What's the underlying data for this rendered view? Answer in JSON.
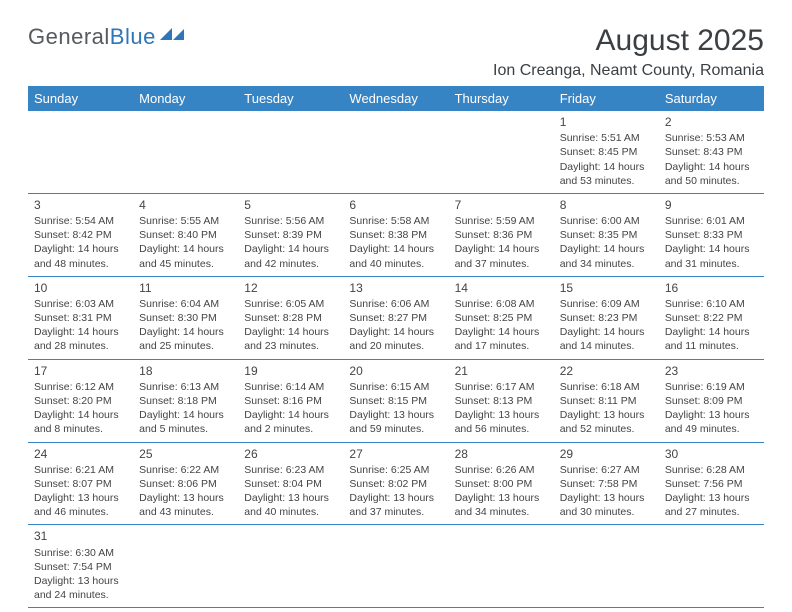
{
  "logo": {
    "word1": "General",
    "word2": "Blue"
  },
  "header": {
    "month_title": "August 2025",
    "location": "Ion Creanga, Neamt County, Romania"
  },
  "colors": {
    "header_bg": "#3784c5",
    "header_text": "#ffffff",
    "accent_border": "#3784c5",
    "text": "#444444",
    "logo_gray": "#555a5e",
    "logo_blue": "#2f76b8"
  },
  "day_labels": [
    "Sunday",
    "Monday",
    "Tuesday",
    "Wednesday",
    "Thursday",
    "Friday",
    "Saturday"
  ],
  "weeks": [
    [
      {
        "empty": true
      },
      {
        "empty": true
      },
      {
        "empty": true
      },
      {
        "empty": true
      },
      {
        "empty": true
      },
      {
        "day": "1",
        "sunrise": "Sunrise: 5:51 AM",
        "sunset": "Sunset: 8:45 PM",
        "daylight": "Daylight: 14 hours and 53 minutes."
      },
      {
        "day": "2",
        "sunrise": "Sunrise: 5:53 AM",
        "sunset": "Sunset: 8:43 PM",
        "daylight": "Daylight: 14 hours and 50 minutes."
      }
    ],
    [
      {
        "day": "3",
        "sunrise": "Sunrise: 5:54 AM",
        "sunset": "Sunset: 8:42 PM",
        "daylight": "Daylight: 14 hours and 48 minutes."
      },
      {
        "day": "4",
        "sunrise": "Sunrise: 5:55 AM",
        "sunset": "Sunset: 8:40 PM",
        "daylight": "Daylight: 14 hours and 45 minutes."
      },
      {
        "day": "5",
        "sunrise": "Sunrise: 5:56 AM",
        "sunset": "Sunset: 8:39 PM",
        "daylight": "Daylight: 14 hours and 42 minutes."
      },
      {
        "day": "6",
        "sunrise": "Sunrise: 5:58 AM",
        "sunset": "Sunset: 8:38 PM",
        "daylight": "Daylight: 14 hours and 40 minutes."
      },
      {
        "day": "7",
        "sunrise": "Sunrise: 5:59 AM",
        "sunset": "Sunset: 8:36 PM",
        "daylight": "Daylight: 14 hours and 37 minutes."
      },
      {
        "day": "8",
        "sunrise": "Sunrise: 6:00 AM",
        "sunset": "Sunset: 8:35 PM",
        "daylight": "Daylight: 14 hours and 34 minutes."
      },
      {
        "day": "9",
        "sunrise": "Sunrise: 6:01 AM",
        "sunset": "Sunset: 8:33 PM",
        "daylight": "Daylight: 14 hours and 31 minutes."
      }
    ],
    [
      {
        "day": "10",
        "sunrise": "Sunrise: 6:03 AM",
        "sunset": "Sunset: 8:31 PM",
        "daylight": "Daylight: 14 hours and 28 minutes."
      },
      {
        "day": "11",
        "sunrise": "Sunrise: 6:04 AM",
        "sunset": "Sunset: 8:30 PM",
        "daylight": "Daylight: 14 hours and 25 minutes."
      },
      {
        "day": "12",
        "sunrise": "Sunrise: 6:05 AM",
        "sunset": "Sunset: 8:28 PM",
        "daylight": "Daylight: 14 hours and 23 minutes."
      },
      {
        "day": "13",
        "sunrise": "Sunrise: 6:06 AM",
        "sunset": "Sunset: 8:27 PM",
        "daylight": "Daylight: 14 hours and 20 minutes."
      },
      {
        "day": "14",
        "sunrise": "Sunrise: 6:08 AM",
        "sunset": "Sunset: 8:25 PM",
        "daylight": "Daylight: 14 hours and 17 minutes."
      },
      {
        "day": "15",
        "sunrise": "Sunrise: 6:09 AM",
        "sunset": "Sunset: 8:23 PM",
        "daylight": "Daylight: 14 hours and 14 minutes."
      },
      {
        "day": "16",
        "sunrise": "Sunrise: 6:10 AM",
        "sunset": "Sunset: 8:22 PM",
        "daylight": "Daylight: 14 hours and 11 minutes."
      }
    ],
    [
      {
        "day": "17",
        "sunrise": "Sunrise: 6:12 AM",
        "sunset": "Sunset: 8:20 PM",
        "daylight": "Daylight: 14 hours and 8 minutes."
      },
      {
        "day": "18",
        "sunrise": "Sunrise: 6:13 AM",
        "sunset": "Sunset: 8:18 PM",
        "daylight": "Daylight: 14 hours and 5 minutes."
      },
      {
        "day": "19",
        "sunrise": "Sunrise: 6:14 AM",
        "sunset": "Sunset: 8:16 PM",
        "daylight": "Daylight: 14 hours and 2 minutes."
      },
      {
        "day": "20",
        "sunrise": "Sunrise: 6:15 AM",
        "sunset": "Sunset: 8:15 PM",
        "daylight": "Daylight: 13 hours and 59 minutes."
      },
      {
        "day": "21",
        "sunrise": "Sunrise: 6:17 AM",
        "sunset": "Sunset: 8:13 PM",
        "daylight": "Daylight: 13 hours and 56 minutes."
      },
      {
        "day": "22",
        "sunrise": "Sunrise: 6:18 AM",
        "sunset": "Sunset: 8:11 PM",
        "daylight": "Daylight: 13 hours and 52 minutes."
      },
      {
        "day": "23",
        "sunrise": "Sunrise: 6:19 AM",
        "sunset": "Sunset: 8:09 PM",
        "daylight": "Daylight: 13 hours and 49 minutes."
      }
    ],
    [
      {
        "day": "24",
        "sunrise": "Sunrise: 6:21 AM",
        "sunset": "Sunset: 8:07 PM",
        "daylight": "Daylight: 13 hours and 46 minutes."
      },
      {
        "day": "25",
        "sunrise": "Sunrise: 6:22 AM",
        "sunset": "Sunset: 8:06 PM",
        "daylight": "Daylight: 13 hours and 43 minutes."
      },
      {
        "day": "26",
        "sunrise": "Sunrise: 6:23 AM",
        "sunset": "Sunset: 8:04 PM",
        "daylight": "Daylight: 13 hours and 40 minutes."
      },
      {
        "day": "27",
        "sunrise": "Sunrise: 6:25 AM",
        "sunset": "Sunset: 8:02 PM",
        "daylight": "Daylight: 13 hours and 37 minutes."
      },
      {
        "day": "28",
        "sunrise": "Sunrise: 6:26 AM",
        "sunset": "Sunset: 8:00 PM",
        "daylight": "Daylight: 13 hours and 34 minutes."
      },
      {
        "day": "29",
        "sunrise": "Sunrise: 6:27 AM",
        "sunset": "Sunset: 7:58 PM",
        "daylight": "Daylight: 13 hours and 30 minutes."
      },
      {
        "day": "30",
        "sunrise": "Sunrise: 6:28 AM",
        "sunset": "Sunset: 7:56 PM",
        "daylight": "Daylight: 13 hours and 27 minutes."
      }
    ],
    [
      {
        "day": "31",
        "sunrise": "Sunrise: 6:30 AM",
        "sunset": "Sunset: 7:54 PM",
        "daylight": "Daylight: 13 hours and 24 minutes."
      },
      {
        "empty": true
      },
      {
        "empty": true
      },
      {
        "empty": true
      },
      {
        "empty": true
      },
      {
        "empty": true
      },
      {
        "empty": true
      }
    ]
  ]
}
